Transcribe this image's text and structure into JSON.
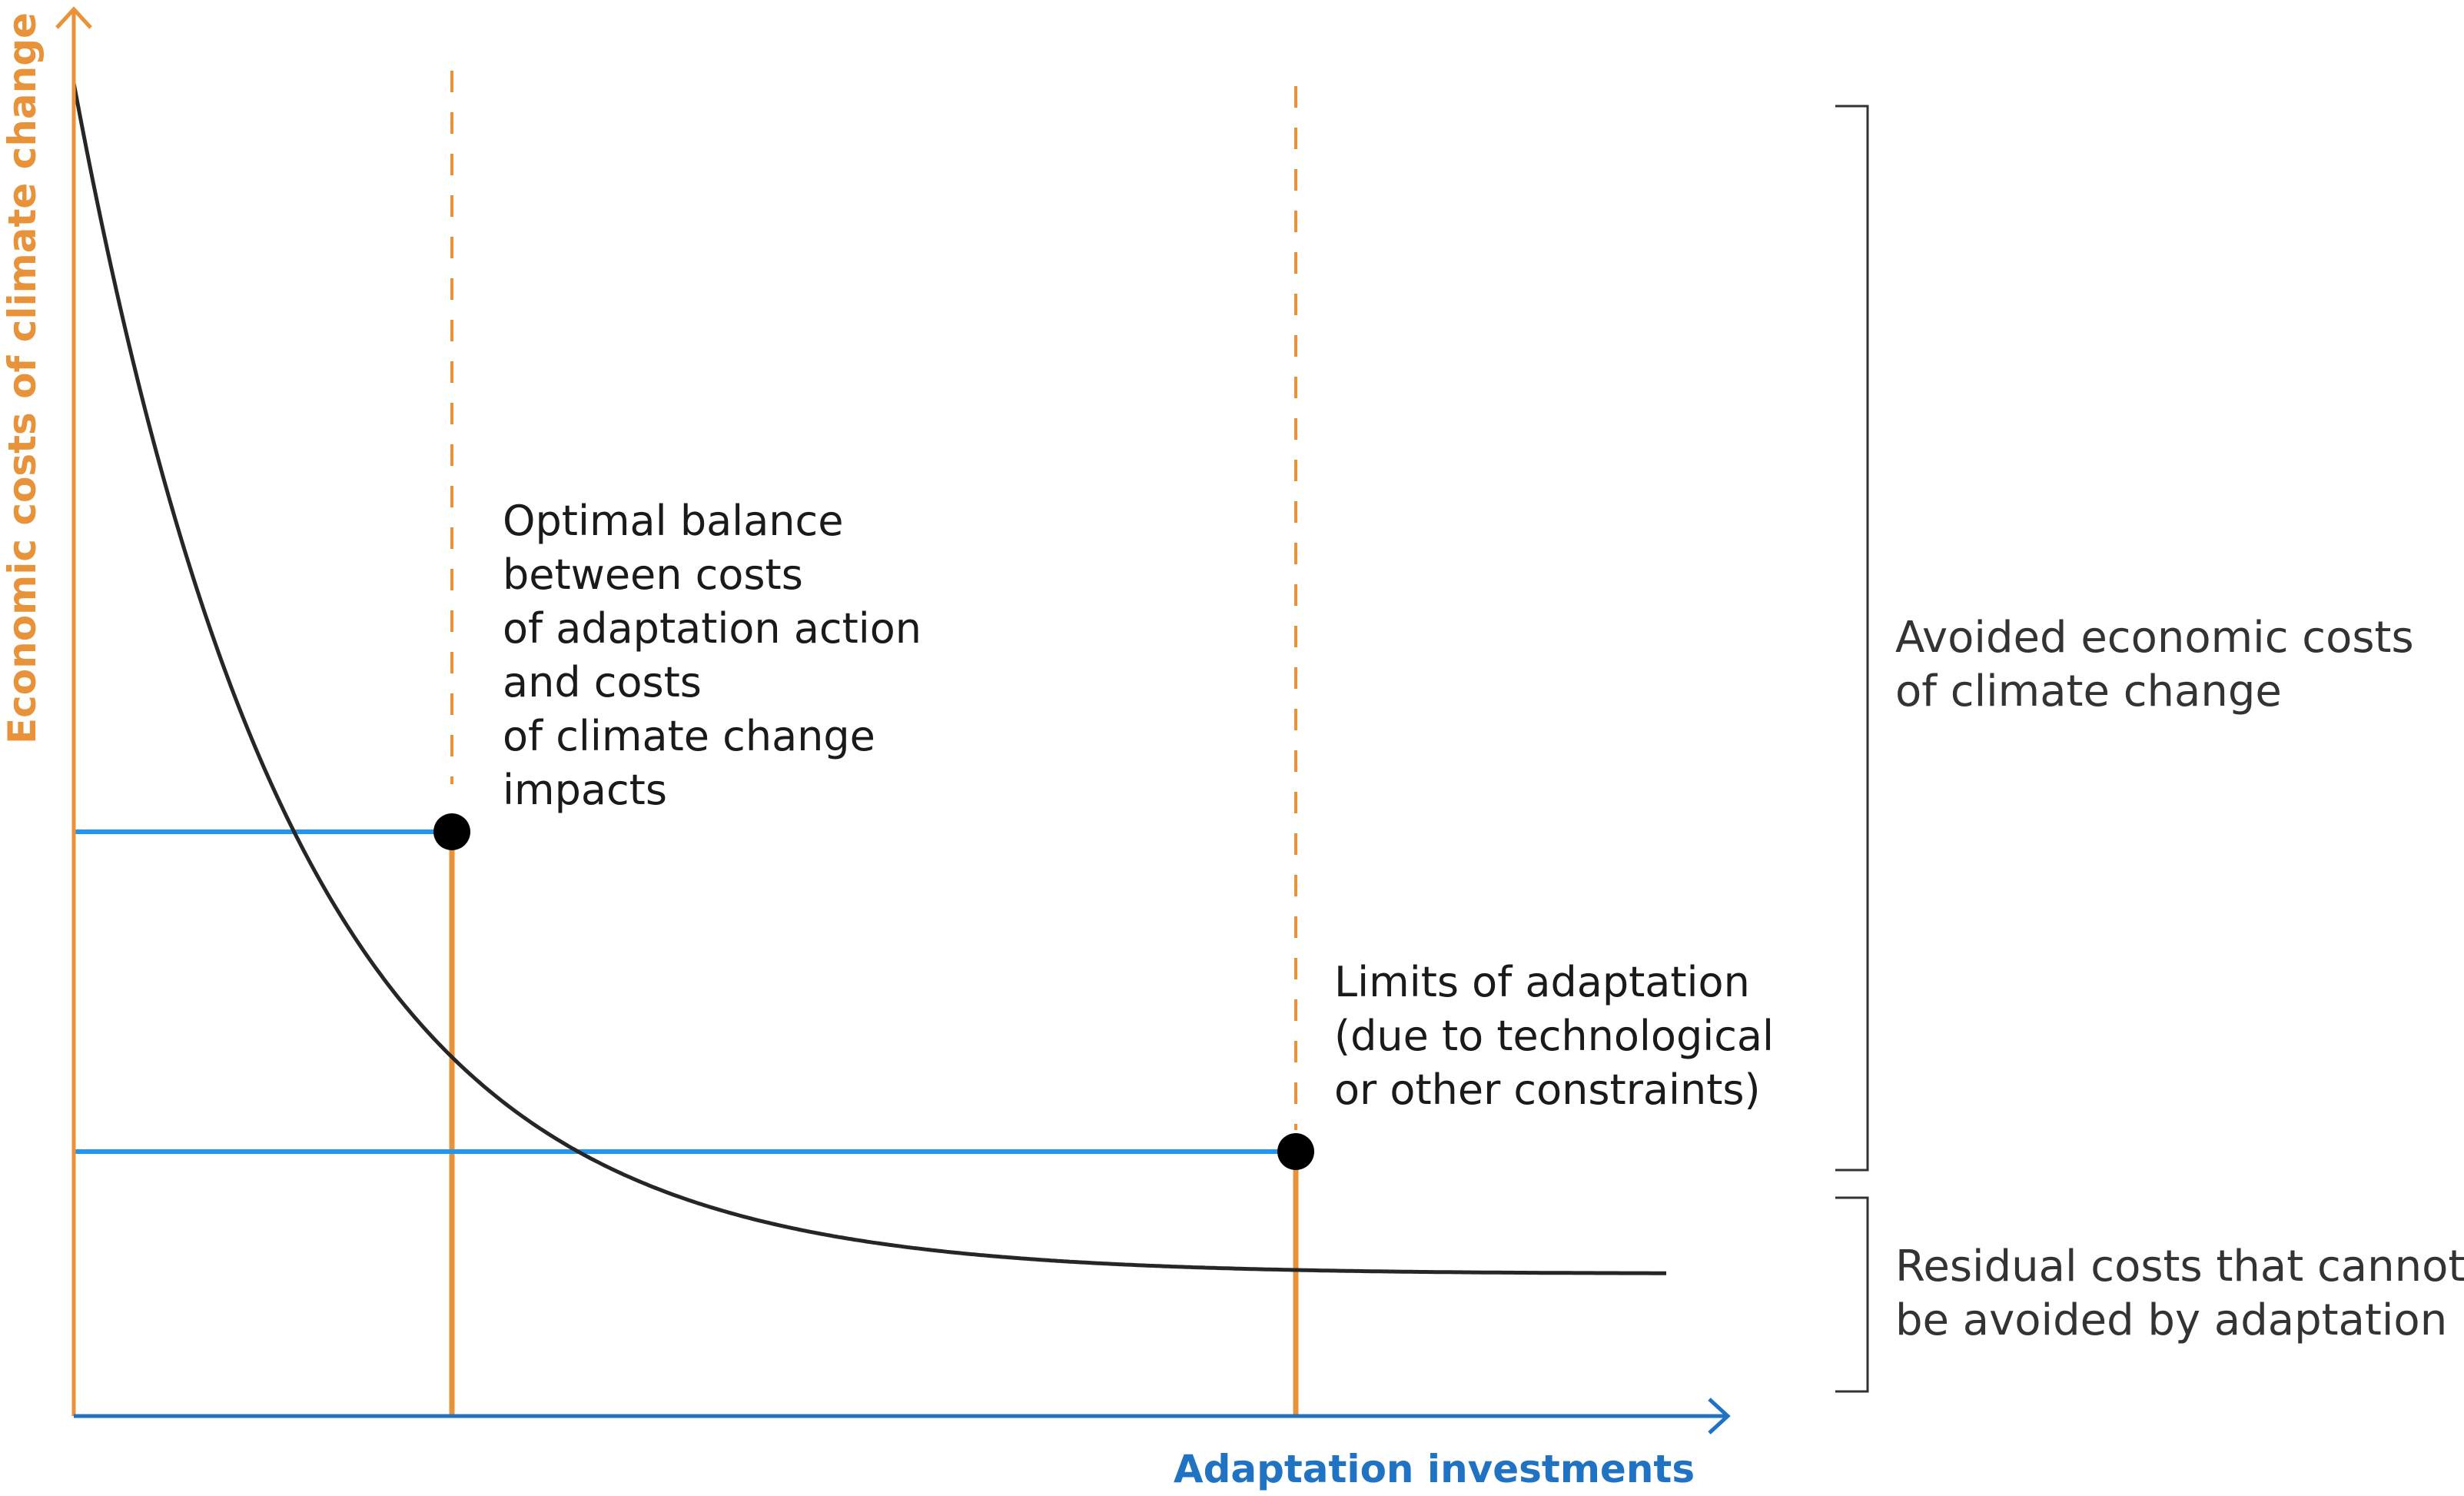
{
  "axes": {
    "y_title": "Economic costs of climate change",
    "x_title": "Adaptation investments"
  },
  "annotations": {
    "optimal": [
      "Optimal balance",
      "between costs",
      "of adaptation action",
      "and costs",
      "of climate change",
      "impacts"
    ],
    "limits": [
      "Limits of adaptation",
      "(due to technological",
      "or other constraints)"
    ]
  },
  "brackets": {
    "avoided": [
      "Avoided economic costs",
      "of climate change"
    ],
    "residual": [
      "Residual costs that cannot",
      "be avoided by adaptation"
    ]
  },
  "colors": {
    "y_axis": "#e8923a",
    "x_axis": "#1f73c2",
    "curve": "#262626",
    "horizontal_guides": "#2196f0",
    "vertical_guides": "#e8923a",
    "points": "#000000",
    "brackets": "#333333"
  }
}
